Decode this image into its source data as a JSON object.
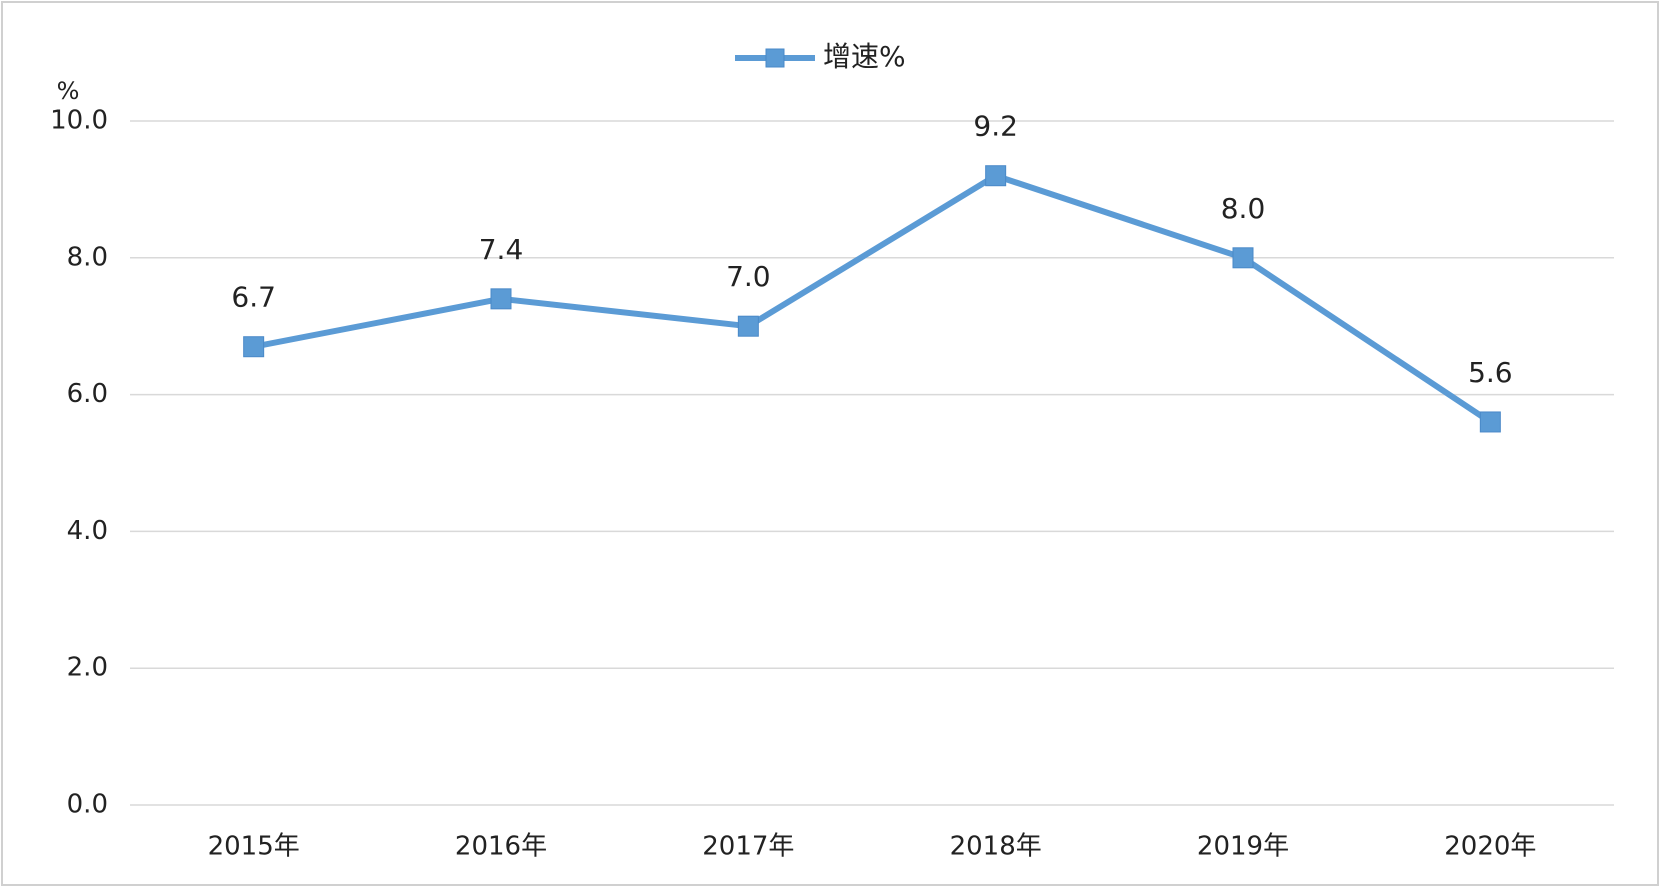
{
  "chart_data": {
    "type": "line",
    "y_unit": "%",
    "categories": [
      "2015年",
      "2016年",
      "2017年",
      "2018年",
      "2019年",
      "2020年"
    ],
    "series": [
      {
        "name": "增速%",
        "color": "#5b9bd5",
        "values": [
          6.7,
          7.4,
          7.0,
          9.2,
          8.0,
          5.6
        ],
        "value_labels": [
          "6.7",
          "7.4",
          "7.0",
          "9.2",
          "8.0",
          "5.6"
        ]
      }
    ],
    "ylim": [
      0,
      10
    ],
    "yticks": [
      {
        "value": 0,
        "label": "0.0"
      },
      {
        "value": 2,
        "label": "2.0"
      },
      {
        "value": 4,
        "label": "4.0"
      },
      {
        "value": 6,
        "label": "6.0"
      },
      {
        "value": 8,
        "label": "8.0"
      },
      {
        "value": 10,
        "label": "10.0"
      }
    ],
    "grid": true,
    "legend": "top"
  }
}
